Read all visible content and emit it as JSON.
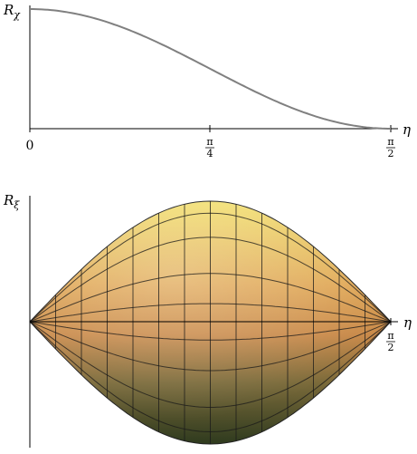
{
  "chart_data": [
    {
      "type": "line",
      "ylabel": "R",
      "ylabel_sub": "χ",
      "xlabel": "η",
      "xlim": [
        0,
        1.5708
      ],
      "ylim": [
        0,
        1
      ],
      "xticks": [
        {
          "value": 0,
          "num": "0",
          "den": ""
        },
        {
          "value": 0.7854,
          "num": "π",
          "den": "4"
        },
        {
          "value": 1.5708,
          "num": "π",
          "den": "2"
        }
      ],
      "series": [
        {
          "x": [
            0,
            0.1571,
            0.3142,
            0.4712,
            0.6283,
            0.7854,
            0.9425,
            1.0996,
            1.2566,
            1.4137,
            1.5708
          ],
          "y": [
            1,
            0.976,
            0.905,
            0.794,
            0.655,
            0.5,
            0.345,
            0.206,
            0.095,
            0.024,
            0
          ]
        }
      ],
      "color": "#808080"
    },
    {
      "type": "surface",
      "ylabel": "R",
      "ylabel_sub": "ξ",
      "xlabel": "η",
      "xlim": [
        0,
        1.5708
      ],
      "ylim": [
        -1,
        1
      ],
      "xticks": [
        {
          "value": 1.5708,
          "num": "π",
          "den": "2"
        }
      ],
      "series": [
        {
          "name": "upper-envelope",
          "x": [
            0,
            0.3927,
            0.7854,
            1.1781,
            1.5708
          ],
          "y": [
            0,
            0.707,
            1,
            0.707,
            0
          ]
        },
        {
          "name": "lower-envelope",
          "x": [
            0,
            0.3927,
            0.7854,
            1.1781,
            1.5708
          ],
          "y": [
            0,
            -0.707,
            -1,
            -0.707,
            0
          ]
        }
      ],
      "colors": {
        "top": "#f2e070",
        "middle": "#c98a4a",
        "bottom": "#2e3a1e"
      }
    }
  ]
}
